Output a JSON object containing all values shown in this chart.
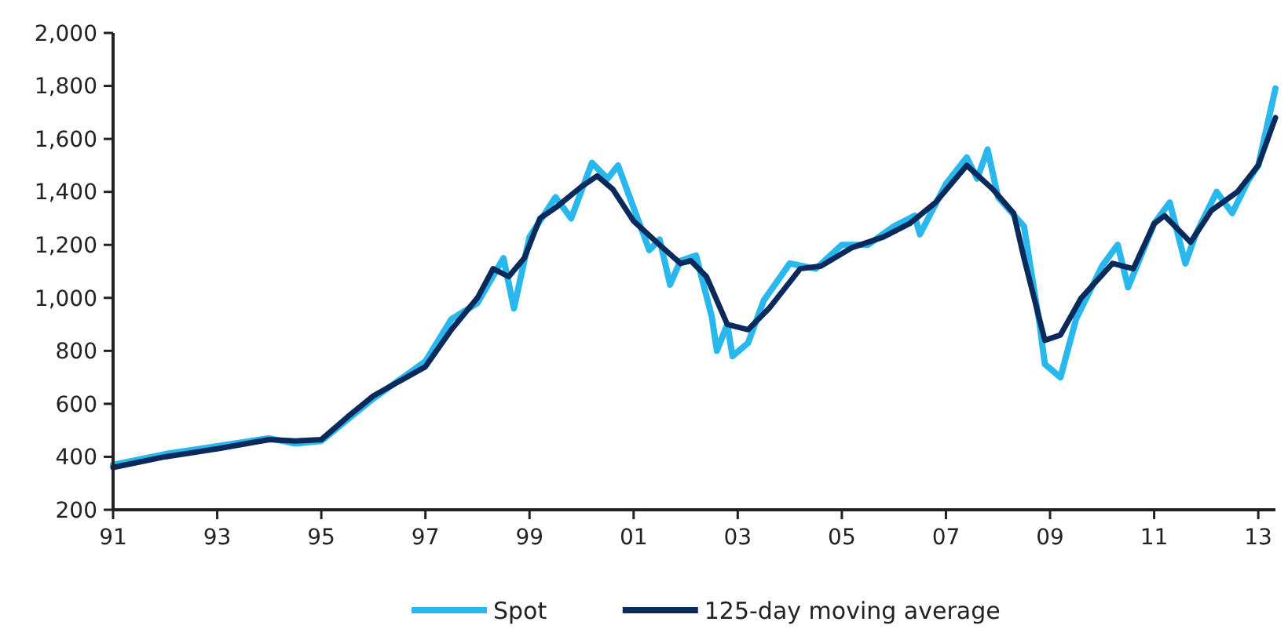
{
  "chart_data": {
    "type": "line",
    "xlim": [
      1991,
      2013.33
    ],
    "xticks": [
      {
        "value": 1991,
        "label": "91"
      },
      {
        "value": 1993,
        "label": "93"
      },
      {
        "value": 1995,
        "label": "95"
      },
      {
        "value": 1997,
        "label": "97"
      },
      {
        "value": 1999,
        "label": "99"
      },
      {
        "value": 2001,
        "label": "01"
      },
      {
        "value": 2003,
        "label": "03"
      },
      {
        "value": 2005,
        "label": "05"
      },
      {
        "value": 2007,
        "label": "07"
      },
      {
        "value": 2009,
        "label": "09"
      },
      {
        "value": 2011,
        "label": "11"
      },
      {
        "value": 2013,
        "label": "13"
      }
    ],
    "ylim": [
      200,
      2000
    ],
    "yticks": [
      {
        "value": 200,
        "label": "200"
      },
      {
        "value": 400,
        "label": "400"
      },
      {
        "value": 600,
        "label": "600"
      },
      {
        "value": 800,
        "label": "800"
      },
      {
        "value": 1000,
        "label": "1,000"
      },
      {
        "value": 1200,
        "label": "1,200"
      },
      {
        "value": 1400,
        "label": "1,400"
      },
      {
        "value": 1600,
        "label": "1,600"
      },
      {
        "value": 1800,
        "label": "1,800"
      },
      {
        "value": 2000,
        "label": "2,000"
      }
    ],
    "legend": "bottom",
    "grid": false,
    "line_style": "solid",
    "series": [
      {
        "name": "Spot",
        "color": "#29b8ed",
        "x": [
          1991,
          1992,
          1993,
          1994,
          1994.5,
          1995,
          1996,
          1997,
          1997.5,
          1998,
          1998.5,
          1998.7,
          1999,
          1999.5,
          1999.8,
          2000.2,
          2000.5,
          2000.7,
          2001,
          2001.3,
          2001.5,
          2001.7,
          2001.9,
          2002.2,
          2002.5,
          2002.6,
          2002.8,
          2002.9,
          2003.2,
          2003.5,
          2004,
          2004.5,
          2005,
          2005.5,
          2006,
          2006.4,
          2006.5,
          2007,
          2007.4,
          2007.6,
          2007.8,
          2008,
          2008.5,
          2008.8,
          2008.9,
          2009.2,
          2009.5,
          2010,
          2010.3,
          2010.5,
          2011,
          2011.3,
          2011.6,
          2011.8,
          2012.2,
          2012.5,
          2012.8,
          2013,
          2013.33
        ],
        "values": [
          370,
          410,
          440,
          470,
          450,
          460,
          620,
          760,
          920,
          980,
          1150,
          960,
          1230,
          1380,
          1300,
          1510,
          1450,
          1500,
          1340,
          1180,
          1220,
          1050,
          1140,
          1160,
          930,
          800,
          900,
          780,
          830,
          990,
          1130,
          1110,
          1200,
          1200,
          1270,
          1310,
          1240,
          1430,
          1530,
          1450,
          1560,
          1380,
          1270,
          900,
          750,
          700,
          920,
          1120,
          1200,
          1040,
          1280,
          1360,
          1130,
          1240,
          1400,
          1320,
          1440,
          1500,
          1790
        ]
      },
      {
        "name": "125-day moving average",
        "color": "#0a2a5c",
        "x": [
          1991,
          1992,
          1993,
          1994,
          1994.5,
          1995,
          1995.5,
          1996,
          1997,
          1997.5,
          1998,
          1998.3,
          1998.6,
          1998.9,
          1999.2,
          1999.5,
          2000,
          2000.3,
          2000.6,
          2001,
          2001.5,
          2001.9,
          2002.1,
          2002.4,
          2002.8,
          2003.2,
          2003.6,
          2004.2,
          2004.6,
          2005.2,
          2005.8,
          2006.3,
          2006.8,
          2007.4,
          2007.9,
          2008.3,
          2008.5,
          2008.9,
          2009.2,
          2009.6,
          2010.2,
          2010.6,
          2011,
          2011.2,
          2011.7,
          2012.1,
          2012.6,
          2013,
          2013.33
        ],
        "values": [
          360,
          400,
          430,
          465,
          460,
          465,
          550,
          630,
          740,
          880,
          1000,
          1110,
          1080,
          1150,
          1300,
          1340,
          1420,
          1460,
          1410,
          1290,
          1200,
          1130,
          1140,
          1080,
          900,
          880,
          960,
          1110,
          1120,
          1190,
          1230,
          1280,
          1360,
          1500,
          1410,
          1320,
          1150,
          840,
          860,
          1000,
          1130,
          1110,
          1280,
          1310,
          1210,
          1330,
          1400,
          1500,
          1680
        ]
      }
    ]
  }
}
